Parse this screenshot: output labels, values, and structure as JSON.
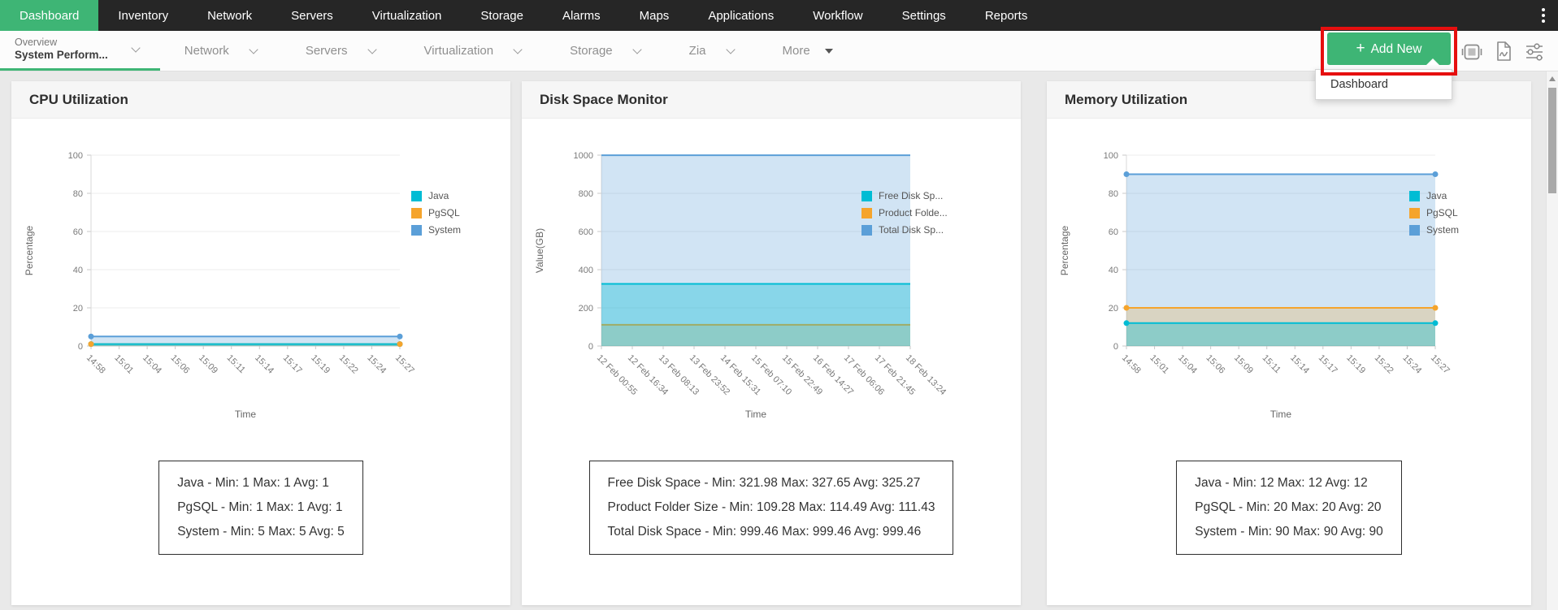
{
  "topnav": {
    "items": [
      {
        "label": "Dashboard",
        "active": true
      },
      {
        "label": "Inventory"
      },
      {
        "label": "Network"
      },
      {
        "label": "Servers"
      },
      {
        "label": "Virtualization"
      },
      {
        "label": "Storage"
      },
      {
        "label": "Alarms"
      },
      {
        "label": "Maps"
      },
      {
        "label": "Applications"
      },
      {
        "label": "Workflow"
      },
      {
        "label": "Settings"
      },
      {
        "label": "Reports"
      }
    ]
  },
  "subnav": {
    "active_tab": {
      "line1": "Overview",
      "line2": "System Perform..."
    },
    "tabs": [
      "Network",
      "Servers",
      "Virtualization",
      "Storage",
      "Zia"
    ],
    "more_label": "More",
    "add_new": {
      "plus": "+",
      "label": "Add New"
    },
    "dropdown": {
      "items": [
        "Dashboard"
      ]
    }
  },
  "annotation_color": "#e60f0f",
  "cards": [
    {
      "title": "CPU Utilization",
      "chart_data": {
        "type": "area",
        "xlabel": "Time",
        "ylabel": "Percentage",
        "ylim": [
          0,
          100
        ],
        "yticks": [
          0,
          20,
          40,
          60,
          80,
          100
        ],
        "markers": true,
        "categories": [
          "14:58",
          "15:01",
          "15:04",
          "15:06",
          "15:09",
          "15:11",
          "15:14",
          "15:17",
          "15:19",
          "15:22",
          "15:24",
          "15:27"
        ],
        "series": [
          {
            "name": "Java",
            "color": "#00bcd4",
            "fill_opacity": 0.35,
            "value": 1
          },
          {
            "name": "PgSQL",
            "color": "#f5a42c",
            "fill_opacity": 0.25,
            "value": 1
          },
          {
            "name": "System",
            "color": "#5b9fd8",
            "fill_opacity": 0.28,
            "value": 5
          }
        ],
        "legend": [
          "Java",
          "PgSQL",
          "System"
        ]
      },
      "stats": [
        "Java - Min: 1 Max: 1 Avg: 1",
        "PgSQL - Min: 1 Max: 1 Avg: 1",
        "System - Min: 5 Max: 5 Avg: 5"
      ]
    },
    {
      "title": "Disk Space Monitor",
      "chart_data": {
        "type": "area",
        "xlabel": "Time",
        "ylabel": "Value(GB)",
        "ylim": [
          0,
          1000
        ],
        "yticks": [
          0,
          200,
          400,
          600,
          800,
          1000
        ],
        "markers": false,
        "categories": [
          "12 Feb 00:55",
          "12 Feb 16:34",
          "13 Feb 08:13",
          "13 Feb 23:52",
          "14 Feb 15:31",
          "15 Feb 07:10",
          "15 Feb 22:49",
          "16 Feb 14:27",
          "17 Feb 06:06",
          "17 Feb 21:45",
          "18 Feb 13:24"
        ],
        "series": [
          {
            "name": "Free Disk Space",
            "color": "#00bcd4",
            "fill_opacity": 0.35,
            "value": 325.27
          },
          {
            "name": "Product Folder Size",
            "color": "#f5a42c",
            "fill_opacity": 0.25,
            "value": 111.43
          },
          {
            "name": "Total Disk Space",
            "color": "#5b9fd8",
            "fill_opacity": 0.28,
            "value": 999.46
          }
        ],
        "legend": [
          "Free Disk Sp...",
          "Product Folde...",
          "Total Disk Sp..."
        ]
      },
      "stats": [
        "Free Disk Space - Min: 321.98 Max: 327.65 Avg: 325.27",
        "Product Folder Size - Min: 109.28 Max: 114.49 Avg: 111.43",
        "Total Disk Space - Min: 999.46 Max: 999.46 Avg: 999.46"
      ]
    },
    {
      "title": "Memory Utilization",
      "chart_data": {
        "type": "area",
        "xlabel": "Time",
        "ylabel": "Percentage",
        "ylim": [
          0,
          100
        ],
        "yticks": [
          0,
          20,
          40,
          60,
          80,
          100
        ],
        "markers": true,
        "categories": [
          "14:58",
          "15:01",
          "15:04",
          "15:06",
          "15:09",
          "15:11",
          "15:14",
          "15:17",
          "15:19",
          "15:22",
          "15:24",
          "15:27"
        ],
        "series": [
          {
            "name": "Java",
            "color": "#00bcd4",
            "fill_opacity": 0.35,
            "value": 12
          },
          {
            "name": "PgSQL",
            "color": "#f5a42c",
            "fill_opacity": 0.25,
            "value": 20
          },
          {
            "name": "System",
            "color": "#5b9fd8",
            "fill_opacity": 0.28,
            "value": 90
          }
        ],
        "legend": [
          "Java",
          "PgSQL",
          "System"
        ]
      },
      "stats": [
        "Java - Min: 12 Max: 12 Avg: 12",
        "PgSQL - Min: 20 Max: 20 Avg: 20",
        "System - Min: 90 Max: 90 Avg: 90"
      ]
    }
  ]
}
